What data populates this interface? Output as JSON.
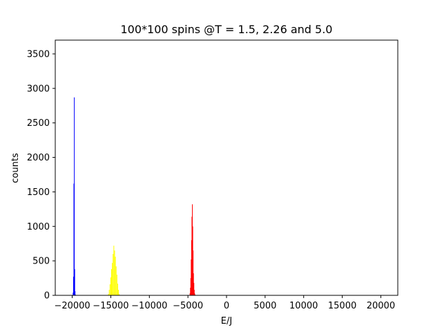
{
  "chart_data": {
    "type": "bar",
    "title": "100*100 spins @T = 1.5, 2.26 and 5.0",
    "xlabel": "E/J",
    "ylabel": "counts",
    "xlim": [
      -22200,
      22200
    ],
    "ylim": [
      0,
      3700
    ],
    "xticks": [
      -20000,
      -15000,
      -10000,
      -5000,
      0,
      5000,
      10000,
      15000,
      20000
    ],
    "yticks": [
      0,
      500,
      1000,
      1500,
      2000,
      2500,
      3000,
      3500
    ],
    "xtick_labels": [
      "−20000",
      "−15000",
      "−10000",
      "−5000",
      "0",
      "5000",
      "10000",
      "15000",
      "20000"
    ],
    "ytick_labels": [
      "0",
      "500",
      "1000",
      "1500",
      "2000",
      "2500",
      "3000",
      "3500"
    ],
    "grid": false,
    "series": [
      {
        "color": "#0000ff",
        "x": [
          -19900,
          -19850,
          -19800,
          -19750,
          -19700,
          -19650,
          -19600
        ],
        "values": [
          40,
          270,
          1620,
          2870,
          380,
          60,
          10
        ]
      },
      {
        "color": "#ffff00",
        "x": [
          -15300,
          -15200,
          -15100,
          -15000,
          -14900,
          -14800,
          -14700,
          -14600,
          -14500,
          -14400,
          -14300,
          -14200,
          -14100,
          -14000,
          -13900
        ],
        "values": [
          20,
          80,
          160,
          260,
          380,
          470,
          600,
          720,
          650,
          560,
          420,
          300,
          170,
          80,
          20
        ]
      },
      {
        "color": "#ff0000",
        "x": [
          -4750,
          -4700,
          -4650,
          -4600,
          -4550,
          -4500,
          -4450,
          -4400,
          -4350,
          -4300,
          -4250,
          -4200,
          -4150,
          -4100,
          -4050
        ],
        "values": [
          30,
          110,
          250,
          520,
          800,
          1140,
          1320,
          1000,
          650,
          320,
          180,
          80,
          30,
          10,
          5
        ]
      }
    ]
  }
}
